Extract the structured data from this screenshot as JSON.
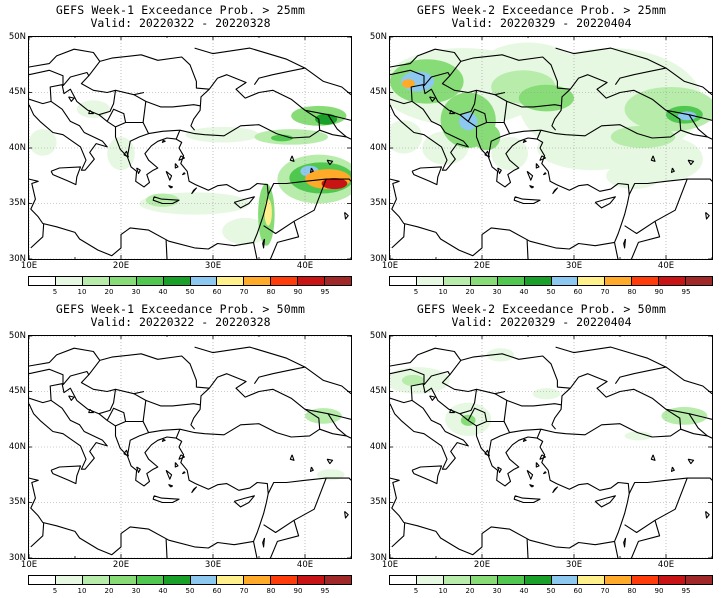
{
  "panels": [
    {
      "title": "GEFS Week-1 Exceedance Prob. > 25mm",
      "valid": "Valid: 20220322 - 20220328",
      "blobs": [
        {
          "lon": 41.5,
          "lat": 42.9,
          "rx": 3.0,
          "ry": 0.9,
          "level": 3
        },
        {
          "lon": 42.3,
          "lat": 42.6,
          "rx": 1.2,
          "ry": 0.5,
          "level": 5
        },
        {
          "lon": 38.5,
          "lat": 41.0,
          "rx": 4.0,
          "ry": 0.7,
          "level": 2
        },
        {
          "lon": 37.5,
          "lat": 40.9,
          "rx": 1.2,
          "ry": 0.3,
          "level": 4
        },
        {
          "lon": 41.5,
          "lat": 37.2,
          "rx": 4.5,
          "ry": 2.2,
          "level": 2
        },
        {
          "lon": 41.8,
          "lat": 37.3,
          "rx": 3.5,
          "ry": 1.4,
          "level": 4
        },
        {
          "lon": 42.5,
          "lat": 37.2,
          "rx": 2.5,
          "ry": 0.9,
          "level": 8
        },
        {
          "lon": 43.2,
          "lat": 36.8,
          "rx": 1.4,
          "ry": 0.5,
          "level": 10
        },
        {
          "lon": 40.5,
          "lat": 37.9,
          "rx": 1.0,
          "ry": 0.5,
          "level": 6
        },
        {
          "lon": 35.8,
          "lat": 34.0,
          "rx": 0.9,
          "ry": 2.8,
          "level": 3
        },
        {
          "lon": 36.0,
          "lat": 34.2,
          "rx": 0.4,
          "ry": 1.2,
          "level": 7
        },
        {
          "lon": 33.5,
          "lat": 32.5,
          "rx": 2.5,
          "ry": 1.2,
          "level": 1
        },
        {
          "lon": 24.5,
          "lat": 35.3,
          "rx": 1.8,
          "ry": 0.6,
          "level": 2
        },
        {
          "lon": 28.0,
          "lat": 35.0,
          "rx": 6.0,
          "ry": 1.0,
          "level": 1
        },
        {
          "lon": 20.0,
          "lat": 39.5,
          "rx": 1.5,
          "ry": 1.5,
          "level": 1
        },
        {
          "lon": 11.5,
          "lat": 40.5,
          "rx": 1.5,
          "ry": 1.2,
          "level": 1
        },
        {
          "lon": 17.0,
          "lat": 43.5,
          "rx": 1.8,
          "ry": 0.8,
          "level": 1
        },
        {
          "lon": 31.0,
          "lat": 41.2,
          "rx": 4.0,
          "ry": 0.7,
          "level": 1
        }
      ]
    },
    {
      "title": "GEFS Week-2 Exceedance Prob. > 25mm",
      "valid": "Valid: 20220329 - 20220404",
      "blobs": [
        {
          "lon": 18.0,
          "lat": 45.5,
          "rx": 9.0,
          "ry": 3.5,
          "level": 1
        },
        {
          "lon": 25.0,
          "lat": 46.5,
          "rx": 6.0,
          "ry": 3.0,
          "level": 1
        },
        {
          "lon": 34.0,
          "lat": 44.0,
          "rx": 10.0,
          "ry": 5.0,
          "level": 1
        },
        {
          "lon": 40.5,
          "lat": 43.5,
          "rx": 5.0,
          "ry": 2.0,
          "level": 2
        },
        {
          "lon": 42.0,
          "lat": 43.0,
          "rx": 2.0,
          "ry": 0.8,
          "level": 4
        },
        {
          "lon": 42.3,
          "lat": 42.9,
          "rx": 1.0,
          "ry": 0.4,
          "level": 6
        },
        {
          "lon": 14.0,
          "lat": 46.0,
          "rx": 4.0,
          "ry": 2.0,
          "level": 3
        },
        {
          "lon": 13.0,
          "lat": 46.0,
          "rx": 1.8,
          "ry": 0.9,
          "level": 6
        },
        {
          "lon": 12.0,
          "lat": 45.8,
          "rx": 0.7,
          "ry": 0.4,
          "level": 8
        },
        {
          "lon": 18.5,
          "lat": 42.5,
          "rx": 3.0,
          "ry": 2.5,
          "level": 3
        },
        {
          "lon": 18.5,
          "lat": 42.4,
          "rx": 1.0,
          "ry": 0.8,
          "level": 6
        },
        {
          "lon": 20.5,
          "lat": 41.0,
          "rx": 1.5,
          "ry": 1.2,
          "level": 3
        },
        {
          "lon": 24.5,
          "lat": 45.5,
          "rx": 3.5,
          "ry": 1.5,
          "level": 2
        },
        {
          "lon": 27.0,
          "lat": 44.5,
          "rx": 3.0,
          "ry": 1.2,
          "level": 3
        },
        {
          "lon": 32.0,
          "lat": 40.0,
          "rx": 6.0,
          "ry": 2.0,
          "level": 1
        },
        {
          "lon": 37.5,
          "lat": 41.0,
          "rx": 3.5,
          "ry": 1.0,
          "level": 2
        },
        {
          "lon": 40.0,
          "lat": 39.0,
          "rx": 4.0,
          "ry": 2.0,
          "level": 1
        },
        {
          "lon": 36.5,
          "lat": 37.5,
          "rx": 3.0,
          "ry": 1.2,
          "level": 1
        },
        {
          "lon": 11.5,
          "lat": 41.0,
          "rx": 2.0,
          "ry": 1.5,
          "level": 1
        },
        {
          "lon": 16.0,
          "lat": 40.0,
          "rx": 2.5,
          "ry": 1.5,
          "level": 1
        },
        {
          "lon": 23.0,
          "lat": 39.5,
          "rx": 2.0,
          "ry": 1.5,
          "level": 1
        }
      ]
    },
    {
      "title": "GEFS Week-1 Exceedance Prob. > 50mm",
      "valid": "Valid: 20220322 - 20220328",
      "blobs": [
        {
          "lon": 42.0,
          "lat": 42.8,
          "rx": 2.0,
          "ry": 0.7,
          "level": 2
        },
        {
          "lon": 42.8,
          "lat": 37.5,
          "rx": 1.5,
          "ry": 0.5,
          "level": 1
        }
      ]
    },
    {
      "title": "GEFS Week-2 Exceedance Prob. > 50mm",
      "valid": "Valid: 20220329 - 20220404",
      "blobs": [
        {
          "lon": 13.0,
          "lat": 46.0,
          "rx": 3.5,
          "ry": 1.2,
          "level": 1
        },
        {
          "lon": 12.5,
          "lat": 46.0,
          "rx": 1.2,
          "ry": 0.5,
          "level": 2
        },
        {
          "lon": 18.5,
          "lat": 42.5,
          "rx": 2.5,
          "ry": 1.5,
          "level": 1
        },
        {
          "lon": 18.5,
          "lat": 42.4,
          "rx": 0.8,
          "ry": 0.5,
          "level": 3
        },
        {
          "lon": 22.0,
          "lat": 48.3,
          "rx": 1.5,
          "ry": 0.6,
          "level": 1
        },
        {
          "lon": 42.0,
          "lat": 42.8,
          "rx": 2.5,
          "ry": 0.8,
          "level": 2
        },
        {
          "lon": 27.0,
          "lat": 44.8,
          "rx": 1.5,
          "ry": 0.5,
          "level": 1
        },
        {
          "lon": 37.0,
          "lat": 41.0,
          "rx": 1.5,
          "ry": 0.4,
          "level": 1
        }
      ]
    }
  ],
  "axes": {
    "lat_labels": [
      "50N",
      "45N",
      "40N",
      "35N",
      "30N"
    ],
    "lat_values": [
      50,
      45,
      40,
      35,
      30
    ],
    "lon_labels": [
      "10E",
      "20E",
      "30E",
      "40E"
    ],
    "lon_values": [
      10,
      20,
      30,
      40
    ],
    "lon_range": [
      10,
      45
    ],
    "lat_range": [
      30,
      50
    ]
  },
  "colorbar": {
    "labels": [
      "5",
      "10",
      "20",
      "30",
      "40",
      "50",
      "60",
      "70",
      "80",
      "90",
      "95"
    ],
    "colors": [
      "#ffffff",
      "#e6f8e1",
      "#b7ecab",
      "#88dc78",
      "#50c850",
      "#18a028",
      "#8cc8f0",
      "#fff08c",
      "#ffaa28",
      "#ff3c0a",
      "#c81414",
      "#a02828"
    ]
  },
  "map_colors": {
    "land": "#ffffff",
    "sea": "#ffffff",
    "border": "#000000",
    "grid": "#999999"
  }
}
